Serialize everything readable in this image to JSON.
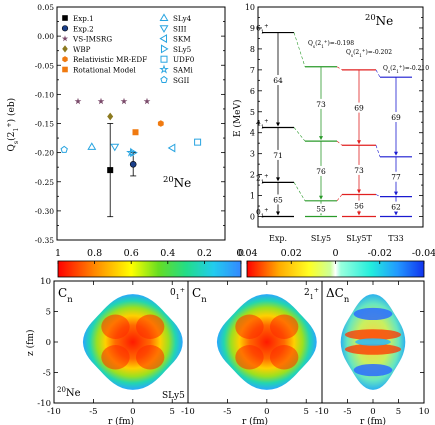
{
  "chart_data": [
    {
      "type": "scatter",
      "ylabel": "Q_s(2_1^+) (eb)",
      "ylim": [
        -0.35,
        0.05
      ],
      "yticks": [
        "0.05",
        "0.00",
        "-0.05",
        "-0.10",
        "-0.15",
        "-0.20",
        "-0.25",
        "-0.30",
        "-0.35"
      ],
      "nucleus": "20Ne",
      "legend_left": [
        "Exp.1",
        "Exp.2",
        "VS-IMSRG",
        "WBP",
        "Relativistic MR-EDF",
        "Rotational Model"
      ],
      "legend_right": [
        "SLy4",
        "SIII",
        "SKM",
        "SLy5",
        "UDF0",
        "SAMi",
        "SGII"
      ],
      "points": [
        {
          "label": "Exp.1",
          "x": 1.4,
          "y": -0.23,
          "err": 0.08,
          "marker": "square",
          "color": "#000000"
        },
        {
          "label": "Exp.2",
          "x": 2.4,
          "y": -0.22,
          "err": 0.02,
          "marker": "circle",
          "color": "#1a3f8a"
        },
        {
          "label": "VS-IMSRG",
          "x": 0,
          "y": -0.112,
          "marker": "star",
          "color": "#7a4a6a"
        },
        {
          "label": "VS-IMSRG",
          "x": 1,
          "y": -0.112,
          "marker": "star",
          "color": "#7a4a6a"
        },
        {
          "label": "VS-IMSRG",
          "x": 2,
          "y": -0.112,
          "marker": "star",
          "color": "#7a4a6a"
        },
        {
          "label": "VS-IMSRG",
          "x": 3,
          "y": -0.112,
          "marker": "star",
          "color": "#7a4a6a"
        },
        {
          "label": "WBP",
          "x": 1.4,
          "y": -0.138,
          "marker": "diamond",
          "color": "#8c7a20"
        },
        {
          "label": "Relativistic MR-EDF",
          "x": 3.6,
          "y": -0.15,
          "marker": "hexagon",
          "color": "#f07a10"
        },
        {
          "label": "Rotational Model",
          "x": 2.5,
          "y": -0.165,
          "marker": "square",
          "color": "#f07a10"
        },
        {
          "label": "SLy4",
          "x": 0.6,
          "y": -0.19,
          "marker": "tri-up",
          "color": "#28a4e0"
        },
        {
          "label": "SIII",
          "x": 1.6,
          "y": -0.19,
          "marker": "tri-down",
          "color": "#28a4e0"
        },
        {
          "label": "SKM",
          "x": 4.1,
          "y": -0.192,
          "marker": "tri-left",
          "color": "#28a4e0"
        },
        {
          "label": "SLy5",
          "x": 2.4,
          "y": -0.2,
          "marker": "tri-right",
          "color": "#28a4e0"
        },
        {
          "label": "UDF0",
          "x": 5.2,
          "y": -0.182,
          "marker": "square-open",
          "color": "#28a4e0"
        },
        {
          "label": "SAMi",
          "x": 2.3,
          "y": -0.2,
          "marker": "star-open",
          "color": "#28a4e0"
        },
        {
          "label": "SGII",
          "x": -0.6,
          "y": -0.195,
          "marker": "pentagon",
          "color": "#28a4e0"
        }
      ]
    },
    {
      "type": "level-scheme",
      "ylabel": "E (MeV)",
      "ylim": [
        -0.5,
        10
      ],
      "yticks": [
        "0",
        "1",
        "2",
        "3",
        "4",
        "5",
        "6",
        "7",
        "8",
        "9",
        "10"
      ],
      "nucleus": "20Ne",
      "columns": [
        {
          "name": "Exp.",
          "color": "#000000",
          "levels": [
            0,
            1.63,
            4.25,
            8.78
          ],
          "be2": [
            "65",
            "71",
            "64"
          ],
          "state_labels": [
            "0_1^+",
            "2_1^+",
            "4_1^+",
            "6_1^+"
          ]
        },
        {
          "name": "SLy5",
          "color": "#2a9a2a",
          "levels": [
            0,
            0.75,
            3.6,
            7.15
          ],
          "be2": [
            "55",
            "76",
            "73"
          ],
          "q": "Q_s(2_1^+)=-0.198"
        },
        {
          "name": "SLy5T",
          "color": "#e02020",
          "levels": [
            0,
            1.05,
            3.4,
            7.0
          ],
          "be2": [
            "56",
            "73",
            "69"
          ],
          "q": "Q_s(2_1^+)=-0.202"
        },
        {
          "name": "T33",
          "color": "#1a1ad0",
          "levels": [
            0,
            0.95,
            2.85,
            6.65
          ],
          "be2": [
            "62",
            "77",
            "69"
          ],
          "q": "Q_s(2_1^+)=-0.210"
        }
      ]
    },
    {
      "type": "heatmap",
      "colorbar_left": {
        "ticks": [
          "1",
          "0.8",
          "0.6",
          "0.4",
          "0.2",
          "0"
        ]
      },
      "colorbar_right": {
        "ticks": [
          "0.04",
          "0.02",
          "0",
          "-0.02",
          "-0.04"
        ]
      },
      "xlabel": "r (fm)",
      "ylabel": "z (fm)",
      "xticks": [
        "-10",
        "-5",
        "0",
        "5"
      ],
      "xticks_last": [
        "-10",
        "-5",
        "0",
        "5",
        "10"
      ],
      "yticks": [
        "10",
        "5",
        "0",
        "-5",
        "-10"
      ],
      "panels": [
        {
          "title": "C_n",
          "state": "0_1^+",
          "nucleus": "20Ne",
          "force": "SLy5"
        },
        {
          "title": "C_n",
          "state": "2_1^+"
        },
        {
          "title": "ΔC_n"
        }
      ]
    }
  ]
}
